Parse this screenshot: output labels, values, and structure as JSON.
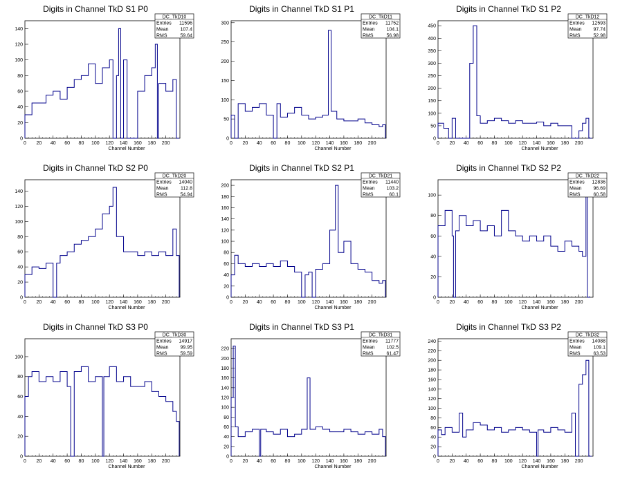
{
  "chart_data": [
    {
      "type": "histogram",
      "title": "Digits in Channel TkD S1 P0",
      "xlabel": "Channel Number",
      "xlim": [
        0,
        220
      ],
      "ylim": [
        0,
        150
      ],
      "xticks": [
        0,
        20,
        40,
        60,
        80,
        100,
        120,
        140,
        160,
        180,
        200
      ],
      "yticks": [
        0,
        20,
        40,
        60,
        80,
        100,
        120,
        140
      ],
      "stats": {
        "name": "DC_TkD10",
        "rows": [
          [
            "Entries",
            "11596"
          ],
          [
            "Mean",
            "107.4"
          ],
          [
            "RMS",
            "59.64"
          ]
        ]
      },
      "bins": [
        [
          0,
          30
        ],
        [
          10,
          45
        ],
        [
          20,
          45
        ],
        [
          30,
          55
        ],
        [
          40,
          60
        ],
        [
          50,
          50
        ],
        [
          60,
          65
        ],
        [
          70,
          75
        ],
        [
          80,
          80
        ],
        [
          90,
          95
        ],
        [
          100,
          70
        ],
        [
          110,
          90
        ],
        [
          120,
          100
        ],
        [
          125,
          0
        ],
        [
          130,
          80
        ],
        [
          133,
          140
        ],
        [
          136,
          0
        ],
        [
          140,
          100
        ],
        [
          145,
          0
        ],
        [
          150,
          0
        ],
        [
          160,
          60
        ],
        [
          170,
          80
        ],
        [
          180,
          90
        ],
        [
          185,
          120
        ],
        [
          188,
          0
        ],
        [
          190,
          70
        ],
        [
          200,
          60
        ],
        [
          210,
          75
        ],
        [
          215,
          0
        ]
      ]
    },
    {
      "type": "histogram",
      "title": "Digits in Channel TkD S1 P1",
      "xlabel": "Channel Number",
      "xlim": [
        0,
        220
      ],
      "ylim": [
        0,
        305
      ],
      "xticks": [
        0,
        20,
        40,
        60,
        80,
        100,
        120,
        140,
        160,
        180,
        200
      ],
      "yticks": [
        0,
        50,
        100,
        150,
        200,
        250,
        300
      ],
      "stats": {
        "name": "DC_TkD11",
        "rows": [
          [
            "Entries",
            "11752"
          ],
          [
            "Mean",
            "104.1"
          ],
          [
            "RMS",
            "56.98"
          ]
        ]
      },
      "bins": [
        [
          0,
          60
        ],
        [
          5,
          0
        ],
        [
          10,
          90
        ],
        [
          20,
          70
        ],
        [
          30,
          80
        ],
        [
          40,
          90
        ],
        [
          50,
          60
        ],
        [
          60,
          0
        ],
        [
          65,
          90
        ],
        [
          70,
          55
        ],
        [
          80,
          65
        ],
        [
          90,
          80
        ],
        [
          100,
          60
        ],
        [
          110,
          50
        ],
        [
          120,
          55
        ],
        [
          130,
          60
        ],
        [
          138,
          280
        ],
        [
          142,
          70
        ],
        [
          150,
          50
        ],
        [
          160,
          45
        ],
        [
          170,
          45
        ],
        [
          180,
          50
        ],
        [
          190,
          40
        ],
        [
          200,
          35
        ],
        [
          210,
          30
        ],
        [
          215,
          35
        ]
      ]
    },
    {
      "type": "histogram",
      "title": "Digits in Channel TkD S1 P2",
      "xlabel": "Channel Number",
      "xlim": [
        0,
        220
      ],
      "ylim": [
        0,
        470
      ],
      "xticks": [
        0,
        20,
        40,
        60,
        80,
        100,
        120,
        140,
        160,
        180,
        200
      ],
      "yticks": [
        0,
        50,
        100,
        150,
        200,
        250,
        300,
        350,
        400,
        450
      ],
      "stats": {
        "name": "DC_TkD12",
        "rows": [
          [
            "Entries",
            "12593"
          ],
          [
            "Mean",
            "97.74"
          ],
          [
            "RMS",
            "52.98"
          ]
        ]
      },
      "bins": [
        [
          0,
          60
        ],
        [
          8,
          40
        ],
        [
          15,
          0
        ],
        [
          20,
          80
        ],
        [
          25,
          0
        ],
        [
          45,
          300
        ],
        [
          50,
          450
        ],
        [
          55,
          90
        ],
        [
          60,
          60
        ],
        [
          70,
          70
        ],
        [
          80,
          80
        ],
        [
          90,
          70
        ],
        [
          100,
          60
        ],
        [
          110,
          70
        ],
        [
          120,
          60
        ],
        [
          130,
          60
        ],
        [
          140,
          65
        ],
        [
          150,
          50
        ],
        [
          160,
          60
        ],
        [
          170,
          50
        ],
        [
          180,
          50
        ],
        [
          190,
          0
        ],
        [
          200,
          30
        ],
        [
          205,
          60
        ],
        [
          210,
          80
        ],
        [
          214,
          0
        ]
      ]
    },
    {
      "type": "histogram",
      "title": "Digits in Channel TkD S2 P0",
      "xlabel": "Channel Number",
      "xlim": [
        0,
        220
      ],
      "ylim": [
        0,
        155
      ],
      "xticks": [
        0,
        20,
        40,
        60,
        80,
        100,
        120,
        140,
        160,
        180,
        200
      ],
      "yticks": [
        0,
        20,
        40,
        60,
        80,
        100,
        120,
        140
      ],
      "stats": {
        "name": "DC_TkD20",
        "rows": [
          [
            "Entries",
            "14040"
          ],
          [
            "Mean",
            "112.8"
          ],
          [
            "RMS",
            "54.94"
          ]
        ]
      },
      "bins": [
        [
          0,
          30
        ],
        [
          10,
          40
        ],
        [
          20,
          38
        ],
        [
          30,
          45
        ],
        [
          40,
          0
        ],
        [
          45,
          45
        ],
        [
          50,
          55
        ],
        [
          60,
          60
        ],
        [
          70,
          70
        ],
        [
          80,
          75
        ],
        [
          90,
          80
        ],
        [
          100,
          90
        ],
        [
          110,
          110
        ],
        [
          120,
          120
        ],
        [
          125,
          145
        ],
        [
          130,
          80
        ],
        [
          140,
          60
        ],
        [
          150,
          60
        ],
        [
          160,
          55
        ],
        [
          170,
          60
        ],
        [
          180,
          55
        ],
        [
          190,
          60
        ],
        [
          200,
          55
        ],
        [
          210,
          90
        ],
        [
          215,
          55
        ]
      ]
    },
    {
      "type": "histogram",
      "title": "Digits in Channel TkD S2 P1",
      "xlabel": "Channel Number",
      "xlim": [
        0,
        220
      ],
      "ylim": [
        0,
        210
      ],
      "xticks": [
        0,
        20,
        40,
        60,
        80,
        100,
        120,
        140,
        160,
        180,
        200
      ],
      "yticks": [
        0,
        20,
        40,
        60,
        80,
        100,
        120,
        140,
        160,
        180,
        200
      ],
      "stats": {
        "name": "DC_TkD21",
        "rows": [
          [
            "Entries",
            "11440"
          ],
          [
            "Mean",
            "103.2"
          ],
          [
            "RMS",
            "60.1"
          ]
        ]
      },
      "bins": [
        [
          0,
          40
        ],
        [
          5,
          75
        ],
        [
          10,
          60
        ],
        [
          20,
          55
        ],
        [
          30,
          60
        ],
        [
          40,
          55
        ],
        [
          50,
          60
        ],
        [
          60,
          55
        ],
        [
          70,
          65
        ],
        [
          80,
          55
        ],
        [
          90,
          45
        ],
        [
          100,
          0
        ],
        [
          105,
          40
        ],
        [
          110,
          45
        ],
        [
          115,
          0
        ],
        [
          120,
          50
        ],
        [
          130,
          60
        ],
        [
          140,
          120
        ],
        [
          148,
          200
        ],
        [
          152,
          80
        ],
        [
          160,
          100
        ],
        [
          170,
          60
        ],
        [
          180,
          50
        ],
        [
          190,
          45
        ],
        [
          200,
          30
        ],
        [
          210,
          25
        ],
        [
          215,
          30
        ]
      ]
    },
    {
      "type": "histogram",
      "title": "Digits in Channel TkD S2 P2",
      "xlabel": "Channel Number",
      "xlim": [
        0,
        220
      ],
      "ylim": [
        0,
        115
      ],
      "xticks": [
        0,
        20,
        40,
        60,
        80,
        100,
        120,
        140,
        160,
        180,
        200
      ],
      "yticks": [
        0,
        20,
        40,
        60,
        80,
        100
      ],
      "stats": {
        "name": "DC_TkD22",
        "rows": [
          [
            "Entries",
            "12836"
          ],
          [
            "Mean",
            "96.69"
          ],
          [
            "RMS",
            "60.58"
          ]
        ]
      },
      "bins": [
        [
          0,
          70
        ],
        [
          10,
          85
        ],
        [
          20,
          60
        ],
        [
          22,
          0
        ],
        [
          25,
          65
        ],
        [
          30,
          80
        ],
        [
          40,
          70
        ],
        [
          50,
          75
        ],
        [
          60,
          65
        ],
        [
          70,
          70
        ],
        [
          80,
          60
        ],
        [
          90,
          85
        ],
        [
          100,
          65
        ],
        [
          110,
          60
        ],
        [
          120,
          55
        ],
        [
          130,
          60
        ],
        [
          140,
          55
        ],
        [
          150,
          60
        ],
        [
          160,
          50
        ],
        [
          170,
          45
        ],
        [
          180,
          55
        ],
        [
          190,
          50
        ],
        [
          200,
          45
        ],
        [
          205,
          40
        ],
        [
          210,
          100
        ],
        [
          212,
          0
        ]
      ]
    },
    {
      "type": "histogram",
      "title": "Digits in Channel TkD S3 P0",
      "xlabel": "Channel Number",
      "xlim": [
        0,
        220
      ],
      "ylim": [
        0,
        118
      ],
      "xticks": [
        0,
        20,
        40,
        60,
        80,
        100,
        120,
        140,
        160,
        180,
        200
      ],
      "yticks": [
        0,
        20,
        40,
        60,
        80,
        100
      ],
      "stats": {
        "name": "DC_TkD30",
        "rows": [
          [
            "Entries",
            "14917"
          ],
          [
            "Mean",
            "99.95"
          ],
          [
            "RMS",
            "59.59"
          ]
        ]
      },
      "bins": [
        [
          0,
          60
        ],
        [
          5,
          80
        ],
        [
          10,
          85
        ],
        [
          20,
          75
        ],
        [
          30,
          80
        ],
        [
          40,
          75
        ],
        [
          50,
          85
        ],
        [
          60,
          70
        ],
        [
          65,
          0
        ],
        [
          70,
          85
        ],
        [
          80,
          90
        ],
        [
          90,
          75
        ],
        [
          100,
          80
        ],
        [
          110,
          0
        ],
        [
          112,
          80
        ],
        [
          120,
          90
        ],
        [
          130,
          75
        ],
        [
          140,
          80
        ],
        [
          150,
          70
        ],
        [
          160,
          70
        ],
        [
          170,
          75
        ],
        [
          180,
          65
        ],
        [
          190,
          60
        ],
        [
          200,
          55
        ],
        [
          210,
          45
        ],
        [
          215,
          35
        ]
      ]
    },
    {
      "type": "histogram",
      "title": "Digits in Channel TkD S3 P1",
      "xlabel": "Channel Number",
      "xlim": [
        0,
        220
      ],
      "ylim": [
        0,
        240
      ],
      "xticks": [
        0,
        20,
        40,
        60,
        80,
        100,
        120,
        140,
        160,
        180,
        200
      ],
      "yticks": [
        0,
        20,
        40,
        60,
        80,
        100,
        120,
        140,
        160,
        180,
        200,
        220
      ],
      "stats": {
        "name": "DC_TkD31",
        "rows": [
          [
            "Entries",
            "11777"
          ],
          [
            "Mean",
            "102.5"
          ],
          [
            "RMS",
            "61.47"
          ]
        ]
      },
      "bins": [
        [
          0,
          120
        ],
        [
          3,
          225
        ],
        [
          6,
          60
        ],
        [
          10,
          40
        ],
        [
          20,
          50
        ],
        [
          30,
          55
        ],
        [
          40,
          0
        ],
        [
          42,
          55
        ],
        [
          50,
          50
        ],
        [
          60,
          45
        ],
        [
          70,
          55
        ],
        [
          80,
          40
        ],
        [
          90,
          45
        ],
        [
          100,
          55
        ],
        [
          108,
          160
        ],
        [
          112,
          55
        ],
        [
          120,
          60
        ],
        [
          130,
          55
        ],
        [
          140,
          50
        ],
        [
          150,
          50
        ],
        [
          160,
          55
        ],
        [
          170,
          50
        ],
        [
          180,
          45
        ],
        [
          190,
          50
        ],
        [
          200,
          45
        ],
        [
          210,
          55
        ],
        [
          215,
          40
        ]
      ]
    },
    {
      "type": "histogram",
      "title": "Digits in Channel TkD S3 P2",
      "xlabel": "Channel Number",
      "xlim": [
        0,
        220
      ],
      "ylim": [
        0,
        245
      ],
      "xticks": [
        0,
        20,
        40,
        60,
        80,
        100,
        120,
        140,
        160,
        180,
        200
      ],
      "yticks": [
        0,
        20,
        40,
        60,
        80,
        100,
        120,
        140,
        160,
        180,
        200,
        220,
        240
      ],
      "stats": {
        "name": "DC_TkD32",
        "rows": [
          [
            "Entries",
            "14088"
          ],
          [
            "Mean",
            "109.1"
          ],
          [
            "RMS",
            "63.53"
          ]
        ]
      },
      "bins": [
        [
          0,
          55
        ],
        [
          5,
          45
        ],
        [
          10,
          60
        ],
        [
          20,
          50
        ],
        [
          30,
          90
        ],
        [
          35,
          40
        ],
        [
          40,
          55
        ],
        [
          50,
          70
        ],
        [
          60,
          65
        ],
        [
          70,
          55
        ],
        [
          80,
          60
        ],
        [
          90,
          50
        ],
        [
          100,
          55
        ],
        [
          110,
          60
        ],
        [
          120,
          55
        ],
        [
          130,
          50
        ],
        [
          140,
          0
        ],
        [
          142,
          55
        ],
        [
          150,
          50
        ],
        [
          160,
          60
        ],
        [
          170,
          55
        ],
        [
          180,
          50
        ],
        [
          190,
          90
        ],
        [
          195,
          0
        ],
        [
          200,
          150
        ],
        [
          205,
          170
        ],
        [
          210,
          200
        ],
        [
          214,
          0
        ]
      ]
    }
  ]
}
